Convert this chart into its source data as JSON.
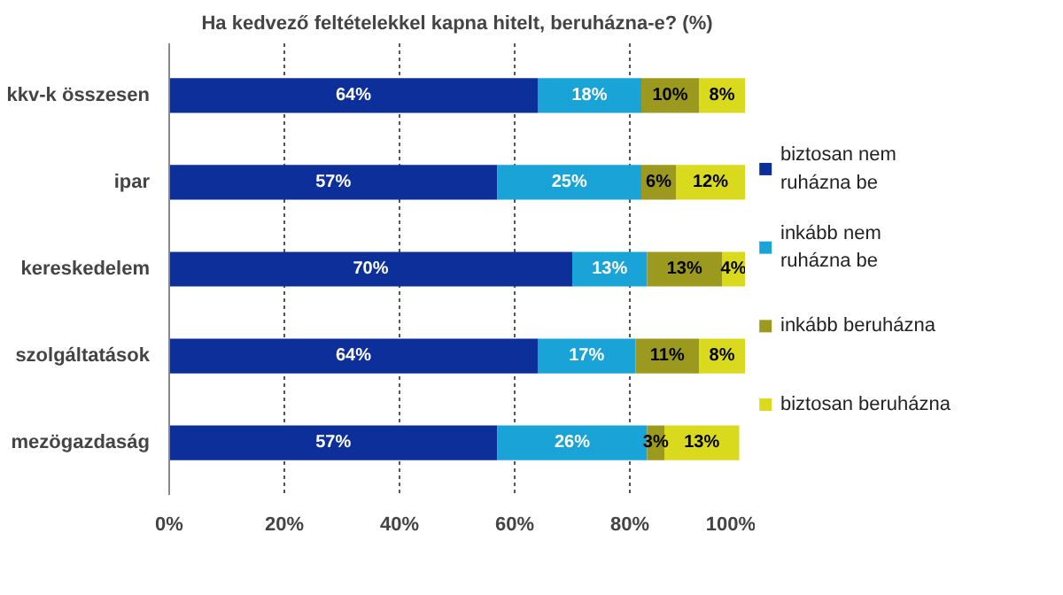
{
  "chart_data": {
    "type": "bar",
    "orientation": "horizontal",
    "stacked": true,
    "title": "Ha kedvező feltételekkel kapna hitelt, beruházna-e? (%)",
    "categories": [
      "kkv-k összesen",
      "ipar",
      "kereskedelem",
      "szolgáltatások",
      "mezögazdaság"
    ],
    "series": [
      {
        "name": "biztosan nem ruházna be",
        "color": "#0d2f9a",
        "values": [
          64,
          57,
          70,
          64,
          57
        ],
        "value_labels": [
          "64%",
          "57%",
          "70%",
          "64%",
          "57%"
        ]
      },
      {
        "name": "inkább nem ruházna be",
        "color": "#1aa3d6",
        "values": [
          18,
          25,
          13,
          17,
          26
        ],
        "value_labels": [
          "18%",
          "25%",
          "13%",
          "17%",
          "26%"
        ]
      },
      {
        "name": "inkább beruházna",
        "color": "#9c9a1e",
        "values": [
          10,
          6,
          13,
          11,
          3
        ],
        "value_labels": [
          "10%",
          "6%",
          "13%",
          "11%",
          "3%"
        ]
      },
      {
        "name": "biztosan beruházna",
        "color": "#d9d91e",
        "values": [
          8,
          12,
          4,
          8,
          13
        ],
        "value_labels": [
          "8%",
          "12%",
          "4%",
          "8%",
          "13%"
        ]
      }
    ],
    "xlim": [
      0,
      100
    ],
    "xticks": [
      {
        "value": 0,
        "label": "0%"
      },
      {
        "value": 20,
        "label": "20%"
      },
      {
        "value": 40,
        "label": "40%"
      },
      {
        "value": 60,
        "label": "60%"
      },
      {
        "value": 80,
        "label": "80%"
      },
      {
        "value": 100,
        "label": "100%"
      }
    ],
    "grid": "x",
    "legend": "right"
  }
}
